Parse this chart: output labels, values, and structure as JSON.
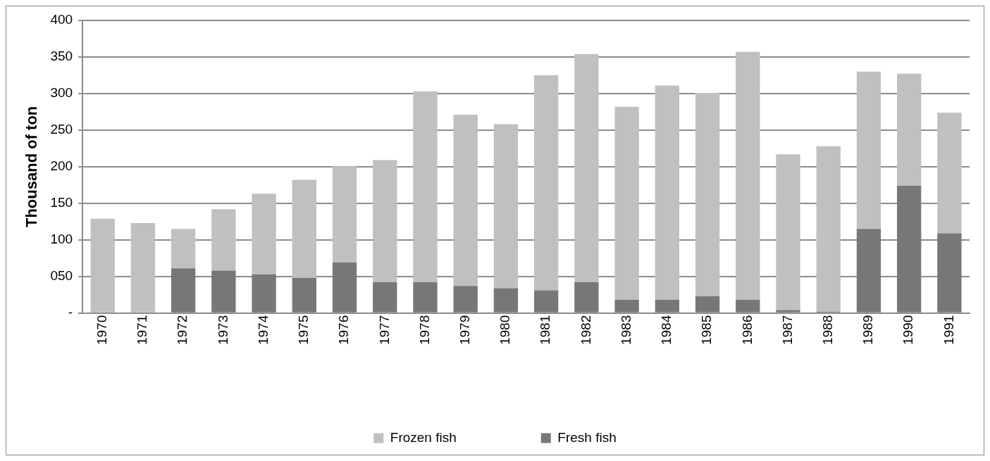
{
  "chart_data": {
    "type": "bar",
    "stacked": true,
    "ylabel": "Thousand of ton",
    "categories": [
      "1970",
      "1971",
      "1972",
      "1973",
      "1974",
      "1975",
      "1976",
      "1977",
      "1978",
      "1979",
      "1980",
      "1981",
      "1982",
      "1983",
      "1984",
      "1985",
      "1986",
      "1987",
      "1988",
      "1989",
      "1990",
      "1991"
    ],
    "series": [
      {
        "name": "Fresh fish",
        "color": "#777777",
        "values": [
          0,
          0,
          61,
          58,
          53,
          48,
          69,
          42,
          42,
          37,
          34,
          31,
          42,
          18,
          18,
          23,
          18,
          4,
          2,
          115,
          174,
          109
        ]
      },
      {
        "name": "Frozen fish",
        "color": "#c0c0c0",
        "values": [
          129,
          123,
          54,
          84,
          110,
          134,
          132,
          167,
          261,
          234,
          224,
          294,
          312,
          264,
          293,
          278,
          339,
          213,
          226,
          215,
          153,
          165
        ]
      }
    ],
    "ylim": [
      0,
      400
    ],
    "yticks": [
      {
        "value": 0,
        "label": "-"
      },
      {
        "value": 50,
        "label": "050"
      },
      100,
      150,
      200,
      250,
      300,
      350,
      400
    ],
    "grid": "y",
    "legend": "bottom"
  }
}
